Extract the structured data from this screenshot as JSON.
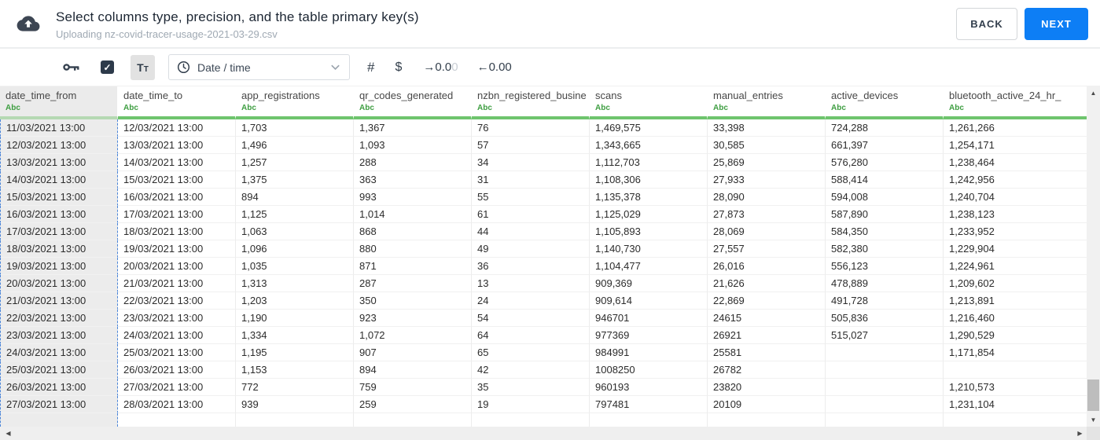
{
  "header": {
    "title": "Select columns type, precision, and the table primary key(s)",
    "subtitle": "Uploading nz-covid-tracer-usage-2021-03-29.csv",
    "back_label": "BACK",
    "next_label": "NEXT"
  },
  "toolbar": {
    "checkbox_checked": true,
    "checkbox_glyph": "✓",
    "text_type_label": "Tt",
    "type_value": "Date / time",
    "number_label": "#",
    "currency_label": "$",
    "decimal_increase_main": "→0.0",
    "decimal_increase_faded": "0",
    "decimal_decrease": "←0.00"
  },
  "scrollbar": {
    "up": "▲",
    "down": "▼",
    "left": "◀",
    "right": "▶"
  },
  "colors": {
    "accent_blue": "#0d7ef5",
    "type_green": "#3e9e41",
    "header_underline_green": "#6ec46d",
    "selected_column_gray": "#ececec",
    "selection_dash_blue": "#4c86d9",
    "dark_navy": "#2d3a4a"
  },
  "table": {
    "selected_column_index": 0,
    "columns": [
      {
        "name": "date_time_from",
        "type": "Abc"
      },
      {
        "name": "date_time_to",
        "type": "Abc"
      },
      {
        "name": "app_registrations",
        "type": "Abc"
      },
      {
        "name": "qr_codes_generated",
        "type": "Abc"
      },
      {
        "name": "nzbn_registered_busine",
        "type": "Abc"
      },
      {
        "name": "scans",
        "type": "Abc"
      },
      {
        "name": "manual_entries",
        "type": "Abc"
      },
      {
        "name": "active_devices",
        "type": "Abc"
      },
      {
        "name": "bluetooth_active_24_hr_",
        "type": "Abc"
      }
    ],
    "rows": [
      [
        "11/03/2021 13:00",
        "12/03/2021 13:00",
        "1,703",
        "1,367",
        "76",
        "1,469,575",
        "33,398",
        "724,288",
        "1,261,266"
      ],
      [
        "12/03/2021 13:00",
        "13/03/2021 13:00",
        "1,496",
        "1,093",
        "57",
        "1,343,665",
        "30,585",
        "661,397",
        "1,254,171"
      ],
      [
        "13/03/2021 13:00",
        "14/03/2021 13:00",
        "1,257",
        "288",
        "34",
        "1,112,703",
        "25,869",
        "576,280",
        "1,238,464"
      ],
      [
        "14/03/2021 13:00",
        "15/03/2021 13:00",
        "1,375",
        "363",
        "31",
        "1,108,306",
        "27,933",
        "588,414",
        "1,242,956"
      ],
      [
        "15/03/2021 13:00",
        "16/03/2021 13:00",
        "894",
        "993",
        "55",
        "1,135,378",
        "28,090",
        "594,008",
        "1,240,704"
      ],
      [
        "16/03/2021 13:00",
        "17/03/2021 13:00",
        "1,125",
        "1,014",
        "61",
        "1,125,029",
        "27,873",
        "587,890",
        "1,238,123"
      ],
      [
        "17/03/2021 13:00",
        "18/03/2021 13:00",
        "1,063",
        "868",
        "44",
        "1,105,893",
        "28,069",
        "584,350",
        "1,233,952"
      ],
      [
        "18/03/2021 13:00",
        "19/03/2021 13:00",
        "1,096",
        "880",
        "49",
        "1,140,730",
        "27,557",
        "582,380",
        "1,229,904"
      ],
      [
        "19/03/2021 13:00",
        "20/03/2021 13:00",
        "1,035",
        "871",
        "36",
        "1,104,477",
        "26,016",
        "556,123",
        "1,224,961"
      ],
      [
        "20/03/2021 13:00",
        "21/03/2021 13:00",
        "1,313",
        "287",
        "13",
        "909,369",
        "21,626",
        "478,889",
        "1,209,602"
      ],
      [
        "21/03/2021 13:00",
        "22/03/2021 13:00",
        "1,203",
        "350",
        "24",
        "909,614",
        "22,869",
        "491,728",
        "1,213,891"
      ],
      [
        "22/03/2021 13:00",
        "23/03/2021 13:00",
        "1,190",
        "923",
        "54",
        "946701",
        "24615",
        "505,836",
        "1,216,460"
      ],
      [
        "23/03/2021 13:00",
        "24/03/2021 13:00",
        "1,334",
        "1,072",
        "64",
        "977369",
        "26921",
        "515,027",
        "1,290,529"
      ],
      [
        "24/03/2021 13:00",
        "25/03/2021 13:00",
        "1,195",
        "907",
        "65",
        "984991",
        "25581",
        "",
        "1,171,854"
      ],
      [
        "25/03/2021 13:00",
        "26/03/2021 13:00",
        "1,153",
        "894",
        "42",
        "1008250",
        "26782",
        "",
        ""
      ],
      [
        "26/03/2021 13:00",
        "27/03/2021 13:00",
        "772",
        "759",
        "35",
        "960193",
        "23820",
        "",
        "1,210,573"
      ],
      [
        "27/03/2021 13:00",
        "28/03/2021 13:00",
        "939",
        "259",
        "19",
        "797481",
        "20109",
        "",
        "1,231,104"
      ]
    ]
  }
}
